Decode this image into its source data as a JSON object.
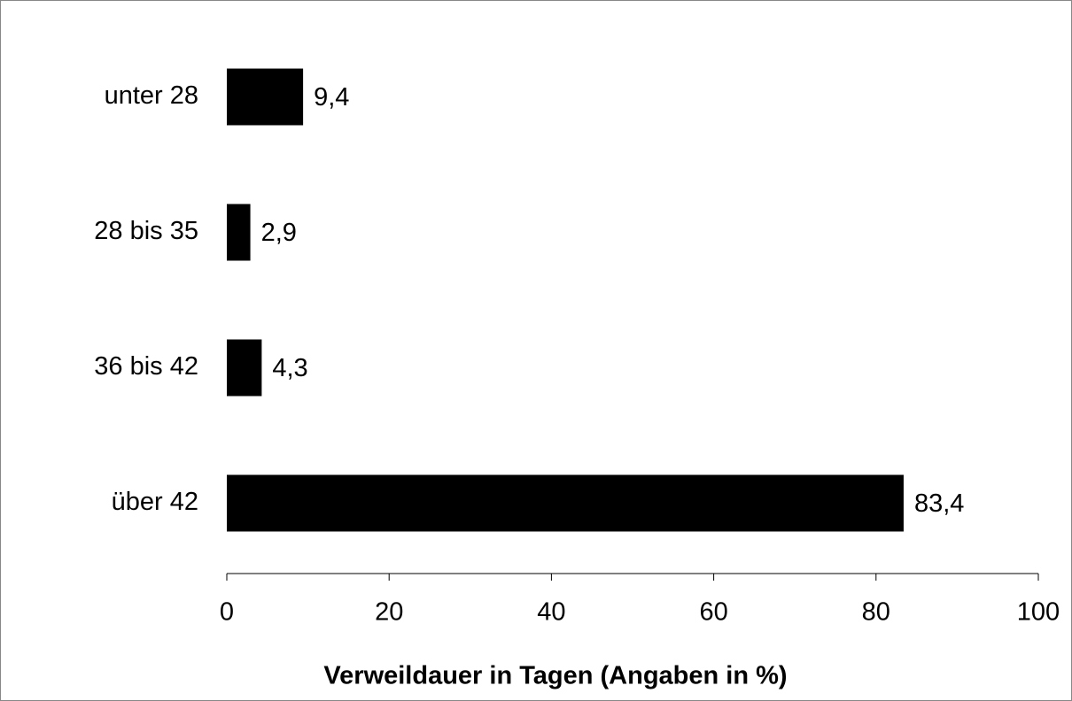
{
  "chart_data": {
    "type": "bar",
    "orientation": "horizontal",
    "x_label": "Verweildauer in Tagen (Angaben in %)",
    "categories": [
      "unter 28",
      "28 bis 35",
      "36 bis 42",
      "über 42"
    ],
    "values": [
      9.4,
      2.9,
      4.3,
      83.4
    ],
    "value_labels": [
      "9,4",
      "2,9",
      "4,3",
      "83,4"
    ],
    "color": "#000000",
    "xlim": [
      0,
      100
    ],
    "xticks": [
      0,
      20,
      40,
      60,
      80,
      100
    ],
    "grid": false
  }
}
